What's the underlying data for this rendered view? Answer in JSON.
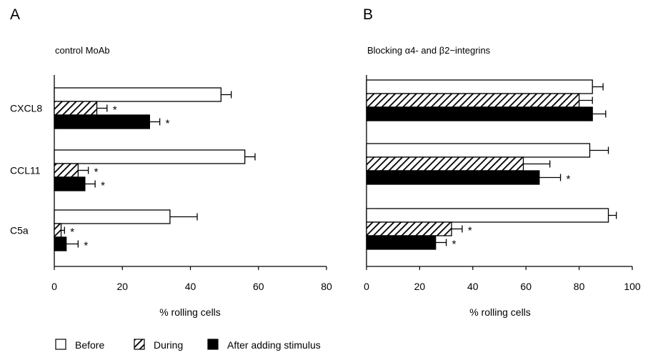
{
  "legend": {
    "placement": "bottom-left",
    "items": [
      {
        "label": "Before",
        "pattern": "open"
      },
      {
        "label": "During",
        "pattern": "hatched"
      },
      {
        "label": "After adding stimulus",
        "pattern": "solid"
      }
    ]
  },
  "chart_data": [
    {
      "type": "bar",
      "orientation": "horizontal",
      "panel_letter": "A",
      "title": "control MoAb",
      "xlabel": "% rolling cells",
      "ylabel": "",
      "xlim": [
        0,
        80
      ],
      "xticks": [
        0,
        20,
        40,
        60,
        80
      ],
      "grid": false,
      "categories": [
        "CXCL8",
        "CCL11",
        "C5a"
      ],
      "series": [
        {
          "name": "Before",
          "pattern": "open",
          "values": [
            49,
            56,
            34
          ],
          "errors": [
            3,
            3,
            8
          ],
          "significant": [
            false,
            false,
            false
          ]
        },
        {
          "name": "During",
          "pattern": "hatched",
          "values": [
            12.5,
            7,
            2
          ],
          "errors": [
            3,
            3,
            1
          ],
          "significant": [
            true,
            true,
            true
          ]
        },
        {
          "name": "After adding stimulus",
          "pattern": "solid",
          "values": [
            28,
            9,
            3.5
          ],
          "errors": [
            3,
            3,
            3.5
          ],
          "significant": [
            true,
            true,
            true
          ]
        }
      ],
      "significance_marker": "*"
    },
    {
      "type": "bar",
      "orientation": "horizontal",
      "panel_letter": "B",
      "title": "Blocking α4- and β2−integrins",
      "xlabel": "% rolling cells",
      "ylabel": "",
      "xlim": [
        0,
        100
      ],
      "xticks": [
        0,
        20,
        40,
        60,
        80,
        100
      ],
      "grid": false,
      "categories": [
        "CXCL8",
        "CCL11",
        "C5a"
      ],
      "series": [
        {
          "name": "Before",
          "pattern": "open",
          "values": [
            85,
            84,
            91
          ],
          "errors": [
            4,
            7,
            3
          ],
          "significant": [
            false,
            false,
            false
          ]
        },
        {
          "name": "During",
          "pattern": "hatched",
          "values": [
            80,
            59,
            32
          ],
          "errors": [
            5,
            10,
            4
          ],
          "significant": [
            false,
            false,
            true
          ]
        },
        {
          "name": "After adding stimulus",
          "pattern": "solid",
          "values": [
            85,
            65,
            26
          ],
          "errors": [
            5,
            8,
            4
          ],
          "significant": [
            false,
            true,
            true
          ]
        }
      ],
      "significance_marker": "*"
    }
  ]
}
